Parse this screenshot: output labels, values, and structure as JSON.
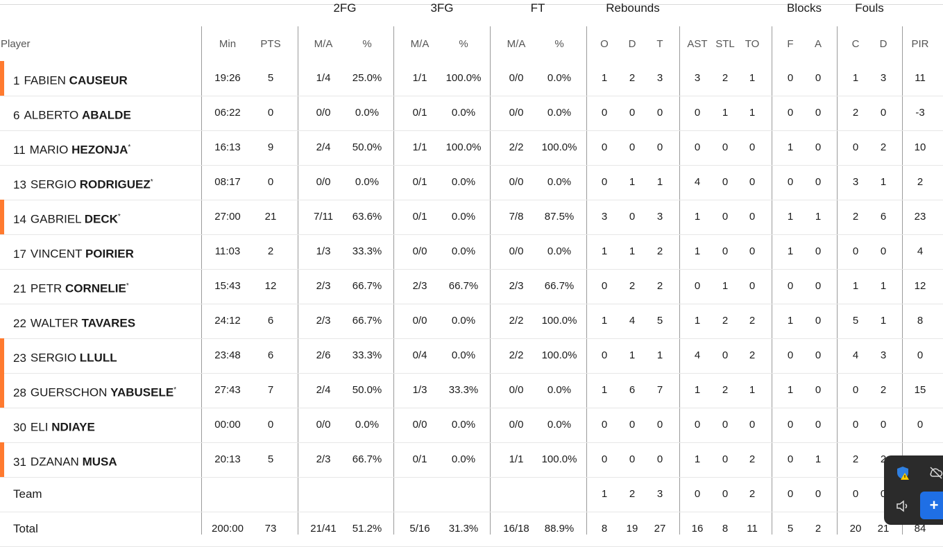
{
  "groups": [
    {
      "key": "2fg",
      "label": "2FG"
    },
    {
      "key": "3fg",
      "label": "3FG"
    },
    {
      "key": "ft",
      "label": "FT"
    },
    {
      "key": "reb",
      "label": "Rebounds"
    },
    {
      "key": "blk",
      "label": "Blocks"
    },
    {
      "key": "fouls",
      "label": "Fouls"
    }
  ],
  "columns": {
    "player": "Player",
    "min": "Min",
    "pts": "PTS",
    "fg2_ma": "M/A",
    "fg2_pct": "%",
    "fg3_ma": "M/A",
    "fg3_pct": "%",
    "ft_ma": "M/A",
    "ft_pct": "%",
    "o": "O",
    "d": "D",
    "t": "T",
    "ast": "AST",
    "stl": "STL",
    "to": "TO",
    "bf": "F",
    "ba": "A",
    "fc": "C",
    "fd": "D",
    "pir": "PIR"
  },
  "rows": [
    {
      "num": "1",
      "first": "FABIEN",
      "last": "CAUSEUR",
      "star": "",
      "bar": true,
      "v": [
        "19:26",
        "5",
        "1/4",
        "25.0%",
        "1/1",
        "100.0%",
        "0/0",
        "0.0%",
        "1",
        "2",
        "3",
        "3",
        "2",
        "1",
        "0",
        "0",
        "1",
        "3",
        "11"
      ]
    },
    {
      "num": "6",
      "first": "ALBERTO",
      "last": "ABALDE",
      "star": "",
      "bar": false,
      "v": [
        "06:22",
        "0",
        "0/0",
        "0.0%",
        "0/1",
        "0.0%",
        "0/0",
        "0.0%",
        "0",
        "0",
        "0",
        "0",
        "1",
        "1",
        "0",
        "0",
        "2",
        "0",
        "-3"
      ]
    },
    {
      "num": "11",
      "first": "MARIO",
      "last": "HEZONJA",
      "star": "*",
      "bar": false,
      "v": [
        "16:13",
        "9",
        "2/4",
        "50.0%",
        "1/1",
        "100.0%",
        "2/2",
        "100.0%",
        "0",
        "0",
        "0",
        "0",
        "0",
        "0",
        "1",
        "0",
        "0",
        "2",
        "10"
      ]
    },
    {
      "num": "13",
      "first": "SERGIO",
      "last": "RODRIGUEZ",
      "star": "*",
      "bar": false,
      "v": [
        "08:17",
        "0",
        "0/0",
        "0.0%",
        "0/1",
        "0.0%",
        "0/0",
        "0.0%",
        "0",
        "1",
        "1",
        "4",
        "0",
        "0",
        "0",
        "0",
        "3",
        "1",
        "2"
      ]
    },
    {
      "num": "14",
      "first": "GABRIEL",
      "last": "DECK",
      "star": "*",
      "bar": true,
      "v": [
        "27:00",
        "21",
        "7/11",
        "63.6%",
        "0/1",
        "0.0%",
        "7/8",
        "87.5%",
        "3",
        "0",
        "3",
        "1",
        "0",
        "0",
        "1",
        "1",
        "2",
        "6",
        "23"
      ]
    },
    {
      "num": "17",
      "first": "VINCENT",
      "last": "POIRIER",
      "star": "",
      "bar": false,
      "v": [
        "11:03",
        "2",
        "1/3",
        "33.3%",
        "0/0",
        "0.0%",
        "0/0",
        "0.0%",
        "1",
        "1",
        "2",
        "1",
        "0",
        "0",
        "1",
        "0",
        "0",
        "0",
        "4"
      ]
    },
    {
      "num": "21",
      "first": "PETR",
      "last": "CORNELIE",
      "star": "*",
      "bar": false,
      "v": [
        "15:43",
        "12",
        "2/3",
        "66.7%",
        "2/3",
        "66.7%",
        "2/3",
        "66.7%",
        "0",
        "2",
        "2",
        "0",
        "1",
        "0",
        "0",
        "0",
        "1",
        "1",
        "12"
      ]
    },
    {
      "num": "22",
      "first": "WALTER",
      "last": "TAVARES",
      "star": "",
      "bar": false,
      "v": [
        "24:12",
        "6",
        "2/3",
        "66.7%",
        "0/0",
        "0.0%",
        "2/2",
        "100.0%",
        "1",
        "4",
        "5",
        "1",
        "2",
        "2",
        "1",
        "0",
        "5",
        "1",
        "8"
      ]
    },
    {
      "num": "23",
      "first": "SERGIO",
      "last": "LLULL",
      "star": "",
      "bar": true,
      "v": [
        "23:48",
        "6",
        "2/6",
        "33.3%",
        "0/4",
        "0.0%",
        "2/2",
        "100.0%",
        "0",
        "1",
        "1",
        "4",
        "0",
        "2",
        "0",
        "0",
        "4",
        "3",
        "0"
      ]
    },
    {
      "num": "28",
      "first": "GUERSCHON",
      "last": "YABUSELE",
      "star": "*",
      "bar": true,
      "v": [
        "27:43",
        "7",
        "2/4",
        "50.0%",
        "1/3",
        "33.3%",
        "0/0",
        "0.0%",
        "1",
        "6",
        "7",
        "1",
        "2",
        "1",
        "1",
        "0",
        "0",
        "2",
        "15"
      ]
    },
    {
      "num": "30",
      "first": "ELI",
      "last": "NDIAYE",
      "star": "",
      "bar": false,
      "v": [
        "00:00",
        "0",
        "0/0",
        "0.0%",
        "0/0",
        "0.0%",
        "0/0",
        "0.0%",
        "0",
        "0",
        "0",
        "0",
        "0",
        "0",
        "0",
        "0",
        "0",
        "0",
        "0"
      ]
    },
    {
      "num": "31",
      "first": "DZANAN",
      "last": "MUSA",
      "star": "",
      "bar": true,
      "v": [
        "20:13",
        "5",
        "2/3",
        "66.7%",
        "0/1",
        "0.0%",
        "1/1",
        "100.0%",
        "0",
        "0",
        "0",
        "1",
        "0",
        "2",
        "0",
        "1",
        "2",
        "2",
        ""
      ]
    }
  ],
  "team": {
    "label": "Team",
    "v": [
      "",
      "",
      "",
      "",
      "",
      "",
      "",
      "",
      "1",
      "2",
      "3",
      "0",
      "0",
      "2",
      "0",
      "0",
      "0",
      "0",
      ""
    ]
  },
  "total": {
    "label": "Total",
    "v": [
      "200:00",
      "73",
      "21/41",
      "51.2%",
      "5/16",
      "31.3%",
      "16/18",
      "88.9%",
      "8",
      "19",
      "27",
      "16",
      "8",
      "11",
      "5",
      "2",
      "20",
      "21",
      "84"
    ]
  },
  "tray_icons": [
    "shield-warning-icon",
    "cloud-off-icon",
    "speaker-icon",
    "add-icon"
  ]
}
